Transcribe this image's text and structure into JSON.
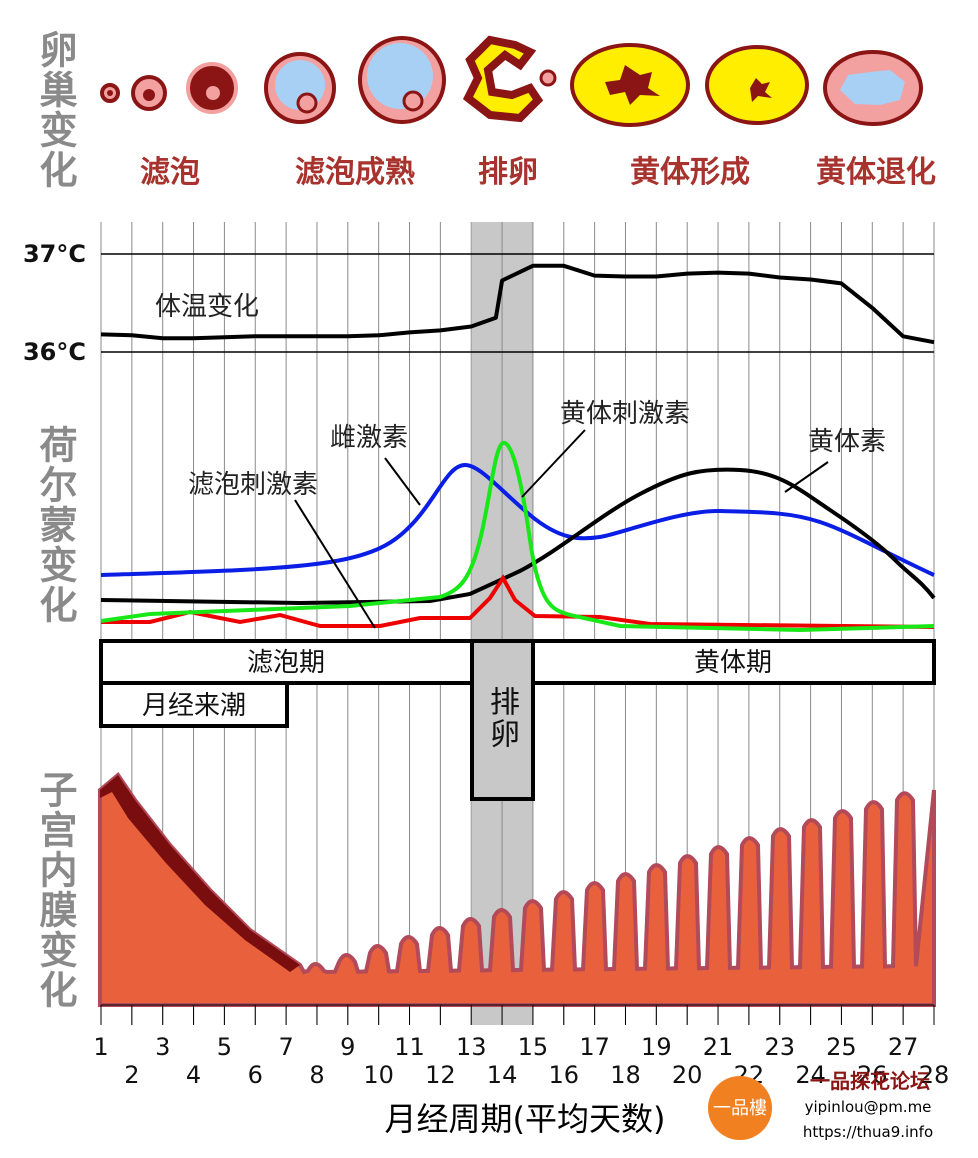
{
  "ovary": {
    "title": "卵巢变化",
    "stages": [
      "滤泡",
      "滤泡成熟",
      "排卵",
      "黄体形成",
      "黄体退化"
    ]
  },
  "hormones": {
    "title": "荷尔蒙变化",
    "estrogen": "雌激素",
    "lh": "黄体刺激素",
    "fsh": "滤泡刺激素",
    "progesterone": "黄体素"
  },
  "chart_data": {
    "type": "line",
    "x": [
      1,
      2,
      3,
      4,
      5,
      6,
      7,
      8,
      9,
      10,
      11,
      12,
      13,
      13.8,
      14,
      15,
      16,
      17,
      18,
      19,
      20,
      21,
      22,
      23,
      24,
      25,
      26,
      27,
      28
    ],
    "series": [
      {
        "name": "体温变化",
        "color": "#000000",
        "values": [
          36.18,
          36.17,
          36.14,
          36.14,
          36.15,
          36.16,
          36.16,
          36.16,
          36.16,
          36.17,
          36.2,
          36.22,
          36.26,
          36.35,
          36.73,
          36.88,
          36.88,
          36.78,
          36.77,
          36.77,
          36.8,
          36.81,
          36.8,
          36.76,
          36.74,
          36.7,
          36.45,
          36.16,
          36.1
        ]
      }
    ],
    "ylim": [
      36,
      37
    ],
    "yticks": [
      {
        "value": 37,
        "label": "37°C"
      },
      {
        "value": 36,
        "label": "36°C"
      }
    ],
    "xlim": [
      1,
      28
    ],
    "xticks": [
      1,
      2,
      3,
      4,
      5,
      6,
      7,
      8,
      9,
      10,
      11,
      12,
      13,
      14,
      15,
      16,
      17,
      18,
      19,
      20,
      21,
      22,
      23,
      24,
      25,
      26,
      27,
      28
    ],
    "x_label": "月经周期(平均天数)",
    "grid": true
  },
  "phases": {
    "follicular": "滤泡期",
    "luteal": "黄体期",
    "menstruation": "月经来潮",
    "ovulation": "排卵"
  },
  "endometrium": {
    "title": "子宫内膜变化"
  },
  "watermark": {
    "logo": "一品樓",
    "site": "一品探花论坛",
    "email": "yipinlou@pm.me",
    "url": "https://thua9.info"
  }
}
